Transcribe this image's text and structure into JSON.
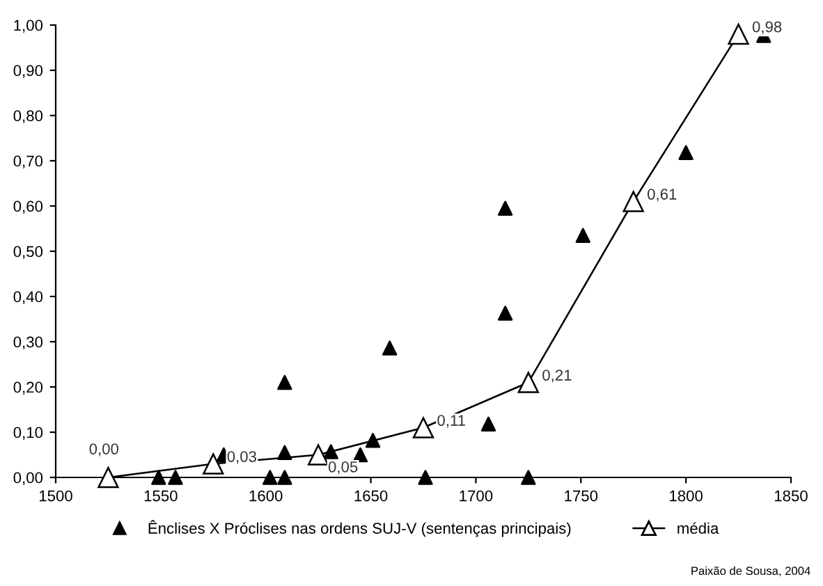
{
  "chart_data": {
    "type": "scatter",
    "xlim": [
      1500,
      1850
    ],
    "xticks": [
      1500,
      1550,
      1600,
      1650,
      1700,
      1750,
      1800,
      1850
    ],
    "ylim": [
      0,
      1.0
    ],
    "yticks": [
      {
        "value": 0,
        "label": "0,00"
      },
      {
        "value": 0.1,
        "label": "0,10"
      },
      {
        "value": 0.2,
        "label": "0,20"
      },
      {
        "value": 0.3,
        "label": "0,30"
      },
      {
        "value": 0.4,
        "label": "0,40"
      },
      {
        "value": 0.5,
        "label": "0,50"
      },
      {
        "value": 0.6,
        "label": "0,60"
      },
      {
        "value": 0.7,
        "label": "0,70"
      },
      {
        "value": 0.8,
        "label": "0,80"
      },
      {
        "value": 0.9,
        "label": "0,90"
      },
      {
        "value": 1.0,
        "label": "1,00"
      }
    ],
    "grid": false,
    "legend": "bottom",
    "series": [
      {
        "name": "Ênclises X Próclises nas ordens SUJ-V (sentenças principais)",
        "marker": "triangle",
        "color": "#000000",
        "x": [
          1549,
          1557,
          1580,
          1602,
          1609,
          1609,
          1609,
          1631,
          1645,
          1651,
          1659,
          1676,
          1706,
          1714,
          1714,
          1725,
          1751,
          1800,
          1837
        ],
        "values": [
          0,
          0,
          0.05,
          0,
          0,
          0.21,
          0.055,
          0.057,
          0.05,
          0.082,
          0.286,
          0,
          0.118,
          0.595,
          0.363,
          0,
          0.535,
          0.718,
          0.977
        ]
      },
      {
        "name": "média",
        "type": "line",
        "marker": "triangle",
        "color": "#000000",
        "x": [
          1525,
          1575,
          1625,
          1675,
          1725,
          1775,
          1825
        ],
        "values": [
          0.0,
          0.03,
          0.05,
          0.11,
          0.21,
          0.61,
          0.98
        ],
        "value_labels": [
          "0,00",
          "0,03",
          "0,05",
          "0,11",
          "0,21",
          "0,61",
          "0,98"
        ]
      }
    ],
    "annotations": [
      "Paixão de Sousa, 2004"
    ]
  }
}
